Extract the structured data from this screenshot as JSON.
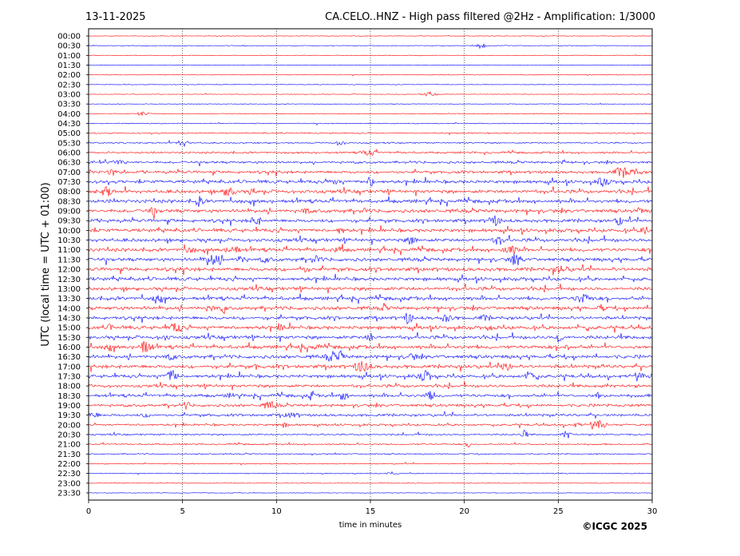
{
  "header": {
    "date": "13-11-2025",
    "title": "CA.CELO..HNZ - High pass filtered @2Hz - Amplification: 1/3000"
  },
  "footer": {
    "copyright": "©ICGC 2025"
  },
  "chart_data": {
    "type": "line",
    "subtype": "seismic-helicorder",
    "xlabel": "time in minutes",
    "ylabel": "UTC (local time = UTC + 01:00)",
    "xlim": [
      0,
      30
    ],
    "x_ticks": [
      0,
      5,
      10,
      15,
      20,
      25,
      30
    ],
    "vertical_gridlines_at": [
      5,
      10,
      15,
      20,
      25
    ],
    "grid_style": "dotted",
    "trace_colors": [
      "#ff0000",
      "#0000ff"
    ],
    "color_pattern": "alternating per row, starting red at 00:00",
    "rows": [
      "00:00",
      "00:30",
      "01:00",
      "01:30",
      "02:00",
      "02:30",
      "03:00",
      "03:30",
      "04:00",
      "04:30",
      "05:00",
      "05:30",
      "06:00",
      "06:30",
      "07:00",
      "07:30",
      "08:00",
      "08:30",
      "09:00",
      "09:30",
      "10:00",
      "10:30",
      "11:00",
      "11:30",
      "12:00",
      "12:30",
      "13:00",
      "13:30",
      "14:00",
      "14:30",
      "15:00",
      "15:30",
      "16:00",
      "16:30",
      "17:00",
      "17:30",
      "18:00",
      "18:30",
      "19:00",
      "19:30",
      "20:00",
      "20:30",
      "21:00",
      "21:30",
      "22:00",
      "22:30",
      "23:00",
      "23:30"
    ],
    "relative_noise_amplitude": [
      0.3,
      0.3,
      0.3,
      0.3,
      0.3,
      0.3,
      0.3,
      0.3,
      0.35,
      0.45,
      0.55,
      0.7,
      0.9,
      1.1,
      1.3,
      1.5,
      1.6,
      1.6,
      1.6,
      1.5,
      1.6,
      1.6,
      1.6,
      1.6,
      1.7,
      1.6,
      1.6,
      1.6,
      1.6,
      1.5,
      1.6,
      1.6,
      1.6,
      1.6,
      1.6,
      1.5,
      1.4,
      1.4,
      1.3,
      1.2,
      1.0,
      0.8,
      0.7,
      0.6,
      0.5,
      0.4,
      0.3,
      0.3
    ]
  }
}
